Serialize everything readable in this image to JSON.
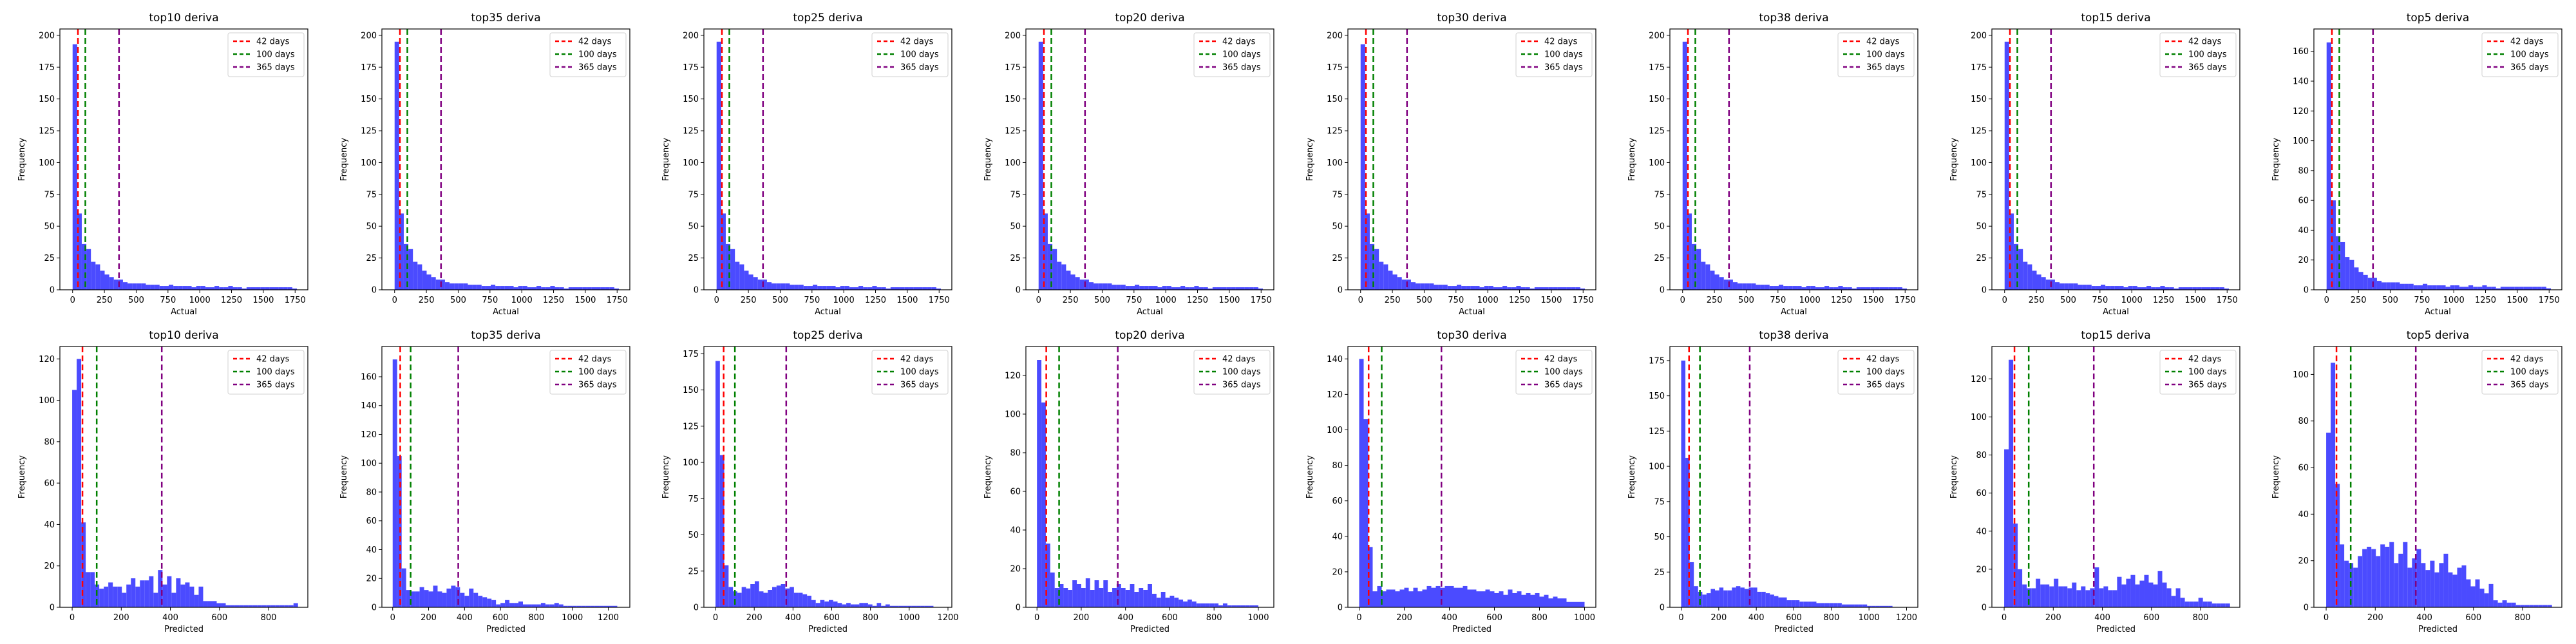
{
  "figure": {
    "xlabel_top": "Actual",
    "xlabel_bottom": "Predicted",
    "ylabel": "Frequency",
    "bar_color": "#4b4bff",
    "ref_lines": [
      {
        "label": "42 days",
        "x": 42,
        "color": "#ff0000"
      },
      {
        "label": "100 days",
        "x": 100,
        "color": "#008000"
      },
      {
        "label": "365 days",
        "x": 365,
        "color": "#800080"
      }
    ]
  },
  "chart_data": [
    {
      "type": "bar",
      "title": "top10 deriva",
      "xlabel": "Actual",
      "ylabel": "Frequency",
      "xlim": [
        -100,
        1850
      ],
      "ylim": [
        0,
        205
      ],
      "xticks": [
        0,
        250,
        500,
        750,
        1000,
        1250,
        1500,
        1750
      ],
      "yticks": [
        0,
        25,
        50,
        75,
        100,
        125,
        150,
        175,
        200
      ],
      "bin_start": 0,
      "bin_width": 36,
      "values": [
        193,
        60,
        36,
        32,
        22,
        20,
        15,
        12,
        10,
        8,
        8,
        6,
        5,
        5,
        5,
        5,
        4,
        4,
        4,
        3,
        3,
        4,
        3,
        3,
        3,
        3,
        2,
        3,
        3,
        2,
        2,
        3,
        2,
        2,
        3,
        2,
        2,
        1,
        2,
        2,
        2,
        2,
        2,
        2,
        2,
        2,
        2,
        2,
        1
      ]
    },
    {
      "type": "bar",
      "title": "top35 deriva",
      "xlabel": "Actual",
      "ylabel": "Frequency",
      "xlim": [
        -100,
        1850
      ],
      "ylim": [
        0,
        205
      ],
      "xticks": [
        0,
        250,
        500,
        750,
        1000,
        1250,
        1500,
        1750
      ],
      "yticks": [
        0,
        25,
        50,
        75,
        100,
        125,
        150,
        175,
        200
      ],
      "bin_start": 0,
      "bin_width": 36,
      "values": [
        195,
        60,
        36,
        32,
        22,
        20,
        15,
        12,
        10,
        8,
        8,
        6,
        5,
        5,
        5,
        5,
        4,
        4,
        4,
        3,
        3,
        4,
        3,
        3,
        3,
        3,
        2,
        3,
        3,
        2,
        2,
        3,
        2,
        2,
        3,
        2,
        2,
        1,
        2,
        2,
        2,
        2,
        2,
        2,
        2,
        2,
        2,
        2,
        1
      ]
    },
    {
      "type": "bar",
      "title": "top25 deriva",
      "xlabel": "Actual",
      "ylabel": "Frequency",
      "xlim": [
        -100,
        1850
      ],
      "ylim": [
        0,
        205
      ],
      "xticks": [
        0,
        250,
        500,
        750,
        1000,
        1250,
        1500,
        1750
      ],
      "yticks": [
        0,
        25,
        50,
        75,
        100,
        125,
        150,
        175,
        200
      ],
      "bin_start": 0,
      "bin_width": 36,
      "values": [
        195,
        60,
        36,
        32,
        22,
        20,
        15,
        12,
        10,
        8,
        8,
        6,
        5,
        5,
        5,
        5,
        4,
        4,
        4,
        3,
        3,
        4,
        3,
        3,
        3,
        3,
        2,
        3,
        3,
        2,
        2,
        3,
        2,
        2,
        3,
        2,
        2,
        1,
        2,
        2,
        2,
        2,
        2,
        2,
        2,
        2,
        2,
        2,
        1
      ]
    },
    {
      "type": "bar",
      "title": "top20 deriva",
      "xlabel": "Actual",
      "ylabel": "Frequency",
      "xlim": [
        -100,
        1850
      ],
      "ylim": [
        0,
        205
      ],
      "xticks": [
        0,
        250,
        500,
        750,
        1000,
        1250,
        1500,
        1750
      ],
      "yticks": [
        0,
        25,
        50,
        75,
        100,
        125,
        150,
        175,
        200
      ],
      "bin_start": 0,
      "bin_width": 36,
      "values": [
        195,
        60,
        36,
        32,
        22,
        20,
        15,
        12,
        10,
        8,
        8,
        6,
        5,
        5,
        5,
        5,
        4,
        4,
        4,
        3,
        3,
        4,
        3,
        3,
        3,
        3,
        2,
        3,
        3,
        2,
        2,
        3,
        2,
        2,
        3,
        2,
        2,
        1,
        2,
        2,
        2,
        2,
        2,
        2,
        2,
        2,
        2,
        2,
        1
      ]
    },
    {
      "type": "bar",
      "title": "top30 deriva",
      "xlabel": "Actual",
      "ylabel": "Frequency",
      "xlim": [
        -100,
        1850
      ],
      "ylim": [
        0,
        205
      ],
      "xticks": [
        0,
        250,
        500,
        750,
        1000,
        1250,
        1500,
        1750
      ],
      "yticks": [
        0,
        25,
        50,
        75,
        100,
        125,
        150,
        175,
        200
      ],
      "bin_start": 0,
      "bin_width": 36,
      "values": [
        193,
        60,
        36,
        32,
        22,
        20,
        15,
        12,
        10,
        8,
        8,
        6,
        5,
        5,
        5,
        5,
        4,
        4,
        4,
        3,
        3,
        4,
        3,
        3,
        3,
        3,
        2,
        3,
        3,
        2,
        2,
        3,
        2,
        2,
        3,
        2,
        2,
        1,
        2,
        2,
        2,
        2,
        2,
        2,
        2,
        2,
        2,
        2,
        1
      ]
    },
    {
      "type": "bar",
      "title": "top38 deriva",
      "xlabel": "Actual",
      "ylabel": "Frequency",
      "xlim": [
        -100,
        1850
      ],
      "ylim": [
        0,
        205
      ],
      "xticks": [
        0,
        250,
        500,
        750,
        1000,
        1250,
        1500,
        1750
      ],
      "yticks": [
        0,
        25,
        50,
        75,
        100,
        125,
        150,
        175,
        200
      ],
      "bin_start": 0,
      "bin_width": 36,
      "values": [
        195,
        60,
        36,
        32,
        22,
        20,
        15,
        12,
        10,
        8,
        8,
        6,
        5,
        5,
        5,
        5,
        4,
        4,
        4,
        3,
        3,
        4,
        3,
        3,
        3,
        3,
        2,
        3,
        3,
        2,
        2,
        3,
        2,
        2,
        3,
        2,
        2,
        1,
        2,
        2,
        2,
        2,
        2,
        2,
        2,
        2,
        2,
        2,
        1
      ]
    },
    {
      "type": "bar",
      "title": "top15 deriva",
      "xlabel": "Actual",
      "ylabel": "Frequency",
      "xlim": [
        -100,
        1850
      ],
      "ylim": [
        0,
        205
      ],
      "xticks": [
        0,
        250,
        500,
        750,
        1000,
        1250,
        1500,
        1750
      ],
      "yticks": [
        0,
        25,
        50,
        75,
        100,
        125,
        150,
        175,
        200
      ],
      "bin_start": 0,
      "bin_width": 36,
      "values": [
        195,
        60,
        36,
        32,
        22,
        20,
        15,
        12,
        10,
        8,
        8,
        6,
        5,
        5,
        5,
        5,
        4,
        4,
        4,
        3,
        3,
        4,
        3,
        3,
        3,
        3,
        2,
        3,
        3,
        2,
        2,
        3,
        2,
        2,
        3,
        2,
        2,
        1,
        2,
        2,
        2,
        2,
        2,
        2,
        2,
        2,
        2,
        2,
        1
      ]
    },
    {
      "type": "bar",
      "title": "top5 deriva",
      "xlabel": "Actual",
      "ylabel": "Frequency",
      "xlim": [
        -100,
        1850
      ],
      "ylim": [
        0,
        175
      ],
      "xticks": [
        0,
        250,
        500,
        750,
        1000,
        1250,
        1500,
        1750
      ],
      "yticks": [
        0,
        20,
        40,
        60,
        80,
        100,
        120,
        140,
        160
      ],
      "bin_start": 0,
      "bin_width": 36,
      "values": [
        166,
        60,
        36,
        32,
        22,
        20,
        15,
        12,
        10,
        8,
        8,
        6,
        5,
        5,
        5,
        5,
        4,
        4,
        4,
        3,
        3,
        4,
        3,
        3,
        3,
        3,
        2,
        3,
        3,
        2,
        2,
        3,
        2,
        2,
        3,
        2,
        2,
        1,
        2,
        2,
        2,
        2,
        2,
        2,
        2,
        2,
        2,
        2,
        1
      ]
    },
    {
      "type": "bar",
      "title": "top10 deriva",
      "xlabel": "Predicted",
      "ylabel": "Frequency",
      "xlim": [
        -50,
        960
      ],
      "ylim": [
        0,
        126
      ],
      "xticks": [
        0,
        200,
        400,
        600,
        800
      ],
      "yticks": [
        0,
        20,
        40,
        60,
        80,
        100,
        120
      ],
      "bin_start": 0,
      "bin_width": 18.4,
      "values": [
        105,
        120,
        41,
        17,
        17,
        11,
        9,
        10,
        12,
        10,
        10,
        7,
        11,
        14,
        10,
        13,
        13,
        15,
        7,
        18,
        11,
        15,
        7,
        14,
        11,
        12,
        10,
        6,
        10,
        3,
        3,
        3,
        2,
        2,
        1,
        1,
        1,
        1,
        1,
        1,
        1,
        1,
        1,
        1,
        1,
        1,
        1,
        1,
        1,
        2
      ]
    },
    {
      "type": "bar",
      "title": "top35 deriva",
      "xlabel": "Predicted",
      "ylabel": "Frequency",
      "xlim": [
        -60,
        1320
      ],
      "ylim": [
        0,
        181
      ],
      "xticks": [
        0,
        200,
        400,
        600,
        800,
        1000,
        1200
      ],
      "yticks": [
        0,
        20,
        40,
        60,
        80,
        100,
        120,
        140,
        160
      ],
      "bin_start": 0,
      "bin_width": 25,
      "values": [
        172,
        105,
        27,
        12,
        11,
        11,
        14,
        12,
        11,
        15,
        11,
        10,
        13,
        15,
        14,
        10,
        8,
        13,
        10,
        8,
        7,
        6,
        5,
        2,
        3,
        5,
        3,
        3,
        4,
        2,
        2,
        2,
        2,
        3,
        2,
        2,
        3,
        2,
        1,
        1,
        1,
        1,
        1,
        1,
        1,
        1,
        1,
        1,
        1,
        1
      ]
    },
    {
      "type": "bar",
      "title": "top25 deriva",
      "xlabel": "Predicted",
      "ylabel": "Frequency",
      "xlim": [
        -60,
        1220
      ],
      "ylim": [
        0,
        180
      ],
      "xticks": [
        0,
        200,
        400,
        600,
        800,
        1000,
        1200
      ],
      "yticks": [
        0,
        25,
        50,
        75,
        100,
        125,
        150,
        175
      ],
      "bin_start": 0,
      "bin_width": 22.5,
      "values": [
        170,
        105,
        29,
        14,
        11,
        10,
        14,
        13,
        16,
        18,
        11,
        10,
        12,
        14,
        15,
        16,
        13,
        14,
        10,
        10,
        9,
        8,
        5,
        3,
        5,
        4,
        5,
        4,
        3,
        2,
        3,
        2,
        2,
        3,
        3,
        2,
        1,
        3,
        1,
        2,
        1,
        1,
        1,
        1,
        1,
        1,
        1,
        1,
        1,
        1
      ]
    },
    {
      "type": "bar",
      "title": "top20 deriva",
      "xlabel": "Predicted",
      "ylabel": "Frequency",
      "xlim": [
        -50,
        1070
      ],
      "ylim": [
        0,
        135
      ],
      "xticks": [
        0,
        200,
        400,
        600,
        800,
        1000
      ],
      "yticks": [
        0,
        20,
        40,
        60,
        80,
        100,
        120
      ],
      "bin_start": 0,
      "bin_width": 20,
      "values": [
        128,
        106,
        33,
        18,
        10,
        12,
        10,
        9,
        14,
        12,
        10,
        15,
        9,
        14,
        10,
        14,
        8,
        10,
        12,
        10,
        9,
        12,
        8,
        10,
        9,
        12,
        7,
        5,
        8,
        5,
        6,
        5,
        4,
        3,
        4,
        3,
        2,
        2,
        2,
        2,
        2,
        1,
        2,
        1,
        1,
        1,
        1,
        1,
        1,
        1
      ]
    },
    {
      "type": "bar",
      "title": "top30 deriva",
      "xlabel": "Predicted",
      "ylabel": "Frequency",
      "xlim": [
        -50,
        1050
      ],
      "ylim": [
        0,
        147
      ],
      "xticks": [
        0,
        200,
        400,
        600,
        800,
        1000
      ],
      "yticks": [
        0,
        20,
        40,
        60,
        80,
        100,
        120,
        140
      ],
      "bin_start": 0,
      "bin_width": 20,
      "values": [
        140,
        106,
        34,
        9,
        12,
        9,
        10,
        10,
        9,
        10,
        11,
        9,
        11,
        9,
        10,
        12,
        11,
        12,
        11,
        12,
        12,
        11,
        11,
        12,
        10,
        10,
        9,
        9,
        10,
        9,
        8,
        9,
        7,
        10,
        8,
        9,
        7,
        8,
        7,
        8,
        6,
        7,
        5,
        6,
        5,
        5,
        3,
        3,
        3,
        3
      ]
    },
    {
      "type": "bar",
      "title": "top38 deriva",
      "xlabel": "Predicted",
      "ylabel": "Frequency",
      "xlim": [
        -60,
        1260
      ],
      "ylim": [
        0,
        185
      ],
      "xticks": [
        0,
        200,
        400,
        600,
        800,
        1000,
        1200
      ],
      "yticks": [
        0,
        25,
        50,
        75,
        100,
        125,
        150,
        175
      ],
      "bin_start": 0,
      "bin_width": 22.5,
      "values": [
        175,
        106,
        32,
        15,
        11,
        9,
        10,
        13,
        12,
        14,
        12,
        12,
        14,
        15,
        14,
        13,
        14,
        14,
        11,
        11,
        10,
        9,
        8,
        7,
        7,
        5,
        5,
        5,
        4,
        4,
        4,
        4,
        3,
        3,
        3,
        3,
        3,
        3,
        2,
        2,
        2,
        2,
        2,
        2,
        1,
        1,
        1,
        1,
        1,
        1
      ]
    },
    {
      "type": "bar",
      "title": "top15 deriva",
      "xlabel": "Predicted",
      "ylabel": "Frequency",
      "xlim": [
        -50,
        960
      ],
      "ylim": [
        0,
        137
      ],
      "xticks": [
        0,
        200,
        400,
        600,
        800
      ],
      "yticks": [
        0,
        20,
        40,
        60,
        80,
        100,
        120
      ],
      "bin_start": 0,
      "bin_width": 18.4,
      "values": [
        83,
        130,
        44,
        20,
        12,
        10,
        10,
        15,
        12,
        12,
        11,
        15,
        11,
        11,
        10,
        13,
        9,
        11,
        9,
        10,
        21,
        10,
        11,
        9,
        9,
        16,
        12,
        15,
        17,
        12,
        14,
        17,
        13,
        12,
        19,
        13,
        10,
        6,
        10,
        5,
        3,
        3,
        3,
        5,
        3,
        3,
        2,
        2,
        2,
        2
      ]
    },
    {
      "type": "bar",
      "title": "top5 deriva",
      "xlabel": "Predicted",
      "ylabel": "Frequency",
      "xlim": [
        -50,
        960
      ],
      "ylim": [
        0,
        112
      ],
      "xticks": [
        0,
        200,
        400,
        600,
        800
      ],
      "yticks": [
        0,
        20,
        40,
        60,
        80,
        100
      ],
      "bin_start": 0,
      "bin_width": 18.4,
      "values": [
        75,
        105,
        53,
        27,
        20,
        19,
        17,
        22,
        25,
        26,
        25,
        22,
        27,
        26,
        28,
        19,
        23,
        28,
        17,
        21,
        25,
        19,
        16,
        20,
        15,
        19,
        23,
        15,
        14,
        17,
        18,
        12,
        9,
        12,
        8,
        6,
        10,
        3,
        2,
        3,
        2,
        2,
        1,
        1,
        1,
        1,
        1,
        1,
        1,
        1
      ]
    }
  ]
}
